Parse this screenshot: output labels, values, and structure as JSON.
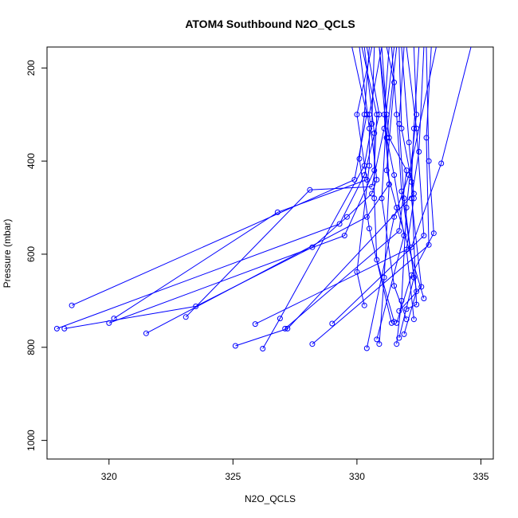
{
  "chart_data": {
    "type": "line",
    "title": "ATOM4 Southbound N2O_QCLS",
    "xlabel": "N2O_QCLS",
    "ylabel": "Pressure (mbar)",
    "xlim": [
      317.5,
      335.5
    ],
    "ylim": [
      1040,
      155
    ],
    "y_reversed": true,
    "grid": false,
    "xticks": [
      320,
      325,
      330,
      335
    ],
    "yticks": [
      200,
      400,
      600,
      800,
      1000
    ],
    "series_color": "#0000ff",
    "profiles": [
      {
        "points": [
          [
            331.0,
            155
          ],
          [
            330.5,
            300
          ],
          [
            330.8,
            440
          ],
          [
            330.6,
            470
          ],
          [
            329.6,
            520
          ],
          [
            328.2,
            585
          ],
          [
            323.5,
            712
          ],
          [
            318.2,
            760
          ]
        ]
      },
      {
        "points": [
          [
            330.4,
            155
          ],
          [
            330.9,
            300
          ],
          [
            330.3,
            430
          ],
          [
            329.3,
            535
          ],
          [
            317.9,
            760
          ]
        ]
      },
      {
        "points": [
          [
            331.3,
            155
          ],
          [
            331.1,
            300
          ],
          [
            331.3,
            450
          ],
          [
            330.4,
            520
          ],
          [
            321.5,
            770
          ]
        ]
      },
      {
        "points": [
          [
            330.2,
            155
          ],
          [
            330.8,
            300
          ],
          [
            330.7,
            420
          ],
          [
            329.5,
            560
          ],
          [
            320.0,
            748
          ]
        ]
      },
      {
        "points": [
          [
            330.6,
            155
          ],
          [
            330.0,
            300
          ],
          [
            330.4,
            440
          ],
          [
            326.8,
            510
          ],
          [
            320.2,
            738
          ]
        ]
      },
      {
        "points": [
          [
            329.8,
            155
          ],
          [
            330.4,
            300
          ],
          [
            329.9,
            440
          ],
          [
            318.5,
            710
          ]
        ]
      },
      {
        "points": [
          [
            331.5,
            155
          ],
          [
            331.1,
            330
          ],
          [
            330.6,
            455
          ],
          [
            328.1,
            462
          ],
          [
            323.1,
            735
          ]
        ]
      },
      {
        "points": [
          [
            330.9,
            155
          ],
          [
            331.3,
            350
          ],
          [
            332.0,
            420
          ],
          [
            331.7,
            550
          ],
          [
            327.1,
            760
          ]
        ]
      },
      {
        "points": [
          [
            332.0,
            155
          ],
          [
            332.4,
            330
          ],
          [
            332.7,
            560
          ],
          [
            329.0,
            749
          ]
        ]
      },
      {
        "points": [
          [
            331.7,
            155
          ],
          [
            331.8,
            330
          ],
          [
            332.3,
            470
          ],
          [
            327.2,
            760
          ],
          [
            325.1,
            797
          ]
        ]
      },
      {
        "points": [
          [
            330.7,
            155
          ],
          [
            330.6,
            320
          ],
          [
            330.3,
            410
          ],
          [
            326.9,
            738
          ],
          [
            326.2,
            803
          ]
        ]
      },
      {
        "points": [
          [
            333.0,
            155
          ],
          [
            332.8,
            350
          ],
          [
            332.9,
            580
          ],
          [
            328.2,
            793
          ]
        ]
      },
      {
        "points": [
          [
            334.6,
            155
          ],
          [
            333.4,
            405
          ],
          [
            332.2,
            585
          ],
          [
            325.9,
            750
          ]
        ]
      },
      {
        "points": [
          [
            333.2,
            155
          ],
          [
            332.1,
            430
          ],
          [
            331.5,
            520
          ],
          [
            330.4,
            802
          ]
        ]
      },
      {
        "points": [
          [
            330.9,
            155
          ],
          [
            331.2,
            350
          ],
          [
            331.5,
            430
          ],
          [
            331.9,
            560
          ],
          [
            330.8,
            783
          ]
        ]
      },
      {
        "points": [
          [
            331.6,
            155
          ],
          [
            331.2,
            350
          ],
          [
            331.3,
            450
          ],
          [
            331.1,
            650
          ],
          [
            330.9,
            793
          ]
        ]
      },
      {
        "points": [
          [
            332.3,
            155
          ],
          [
            332.4,
            300
          ],
          [
            332.0,
            500
          ],
          [
            331.8,
            700
          ],
          [
            331.6,
            793
          ]
        ]
      },
      {
        "points": [
          [
            331.9,
            155
          ],
          [
            331.7,
            320
          ],
          [
            331.9,
            480
          ],
          [
            332.3,
            650
          ],
          [
            331.7,
            780
          ]
        ]
      },
      {
        "points": [
          [
            330.3,
            155
          ],
          [
            330.7,
            340
          ],
          [
            330.7,
            480
          ],
          [
            330.8,
            612
          ],
          [
            331.5,
            745
          ]
        ]
      },
      {
        "points": [
          [
            332.8,
            155
          ],
          [
            332.9,
            400
          ],
          [
            333.1,
            555
          ],
          [
            332.2,
            645
          ],
          [
            331.6,
            748
          ]
        ]
      },
      {
        "points": [
          [
            331.4,
            155
          ],
          [
            331.6,
            300
          ],
          [
            331.8,
            465
          ],
          [
            332.4,
            680
          ],
          [
            331.9,
            772
          ]
        ]
      },
      {
        "points": [
          [
            330.5,
            155
          ],
          [
            330.3,
            300
          ],
          [
            330.1,
            395
          ],
          [
            330.5,
            545
          ],
          [
            331.4,
            748
          ]
        ]
      },
      {
        "points": [
          [
            332.5,
            155
          ],
          [
            332.3,
            330
          ],
          [
            332.2,
            445
          ],
          [
            332.4,
            708
          ],
          [
            332.0,
            718
          ]
        ]
      },
      {
        "points": [
          [
            331.2,
            155
          ],
          [
            331.5,
            231
          ],
          [
            331.2,
            420
          ],
          [
            331.6,
            500
          ],
          [
            332.7,
            695
          ]
        ]
      },
      {
        "points": [
          [
            330.1,
            155
          ],
          [
            330.5,
            330
          ],
          [
            330.5,
            410
          ],
          [
            330.0,
            638
          ],
          [
            330.3,
            710
          ]
        ]
      },
      {
        "points": [
          [
            331.8,
            155
          ],
          [
            332.1,
            360
          ],
          [
            332.3,
            480
          ],
          [
            332.0,
            590
          ],
          [
            332.3,
            740
          ]
        ]
      },
      {
        "points": [
          [
            332.7,
            155
          ],
          [
            332.5,
            380
          ],
          [
            332.2,
            480
          ],
          [
            332.6,
            670
          ],
          [
            331.7,
            722
          ]
        ]
      },
      {
        "points": [
          [
            331.0,
            155
          ],
          [
            331.2,
            300
          ],
          [
            331.0,
            480
          ],
          [
            331.5,
            668
          ],
          [
            332.0,
            740
          ]
        ]
      }
    ]
  }
}
